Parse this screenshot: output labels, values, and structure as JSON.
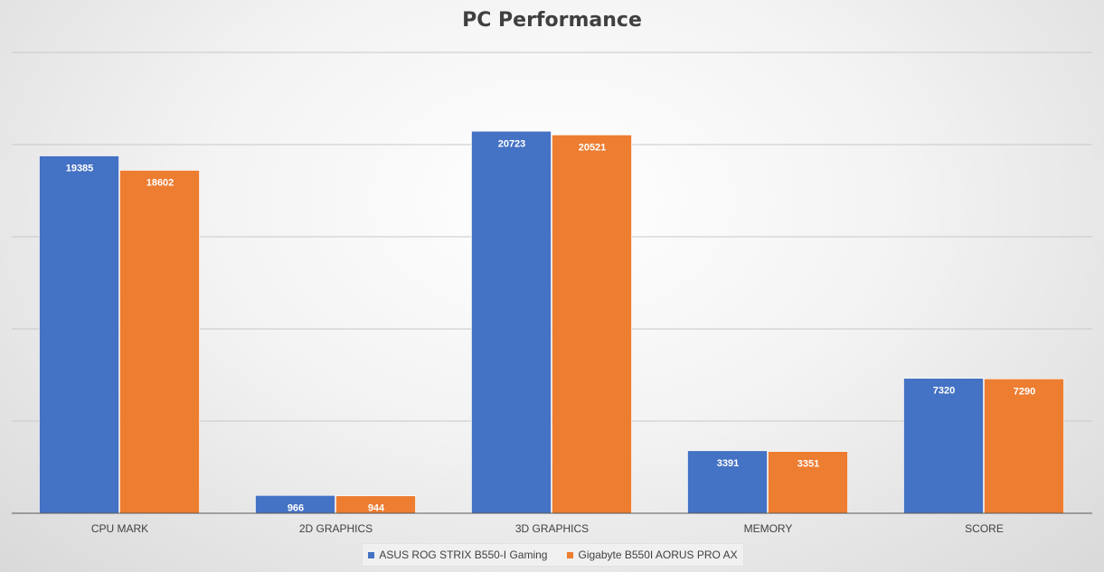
{
  "chart_data": {
    "type": "bar",
    "title": "PC Performance",
    "xlabel": "",
    "ylabel": "",
    "categories": [
      "CPU MARK",
      "2D GRAPHICS",
      "3D GRAPHICS",
      "MEMORY",
      "SCORE"
    ],
    "series": [
      {
        "name": "ASUS ROG STRIX B550-I Gaming",
        "color": "#4472c4",
        "values": [
          19385,
          966,
          20723,
          3391,
          7320
        ]
      },
      {
        "name": "Gigabyte B550I AORUS PRO AX",
        "color": "#ed7d31",
        "values": [
          18602,
          944,
          20521,
          3351,
          7290
        ]
      }
    ],
    "ylim": [
      0,
      25000
    ],
    "grid": true,
    "legend_position": "bottom",
    "data_labels": true
  }
}
